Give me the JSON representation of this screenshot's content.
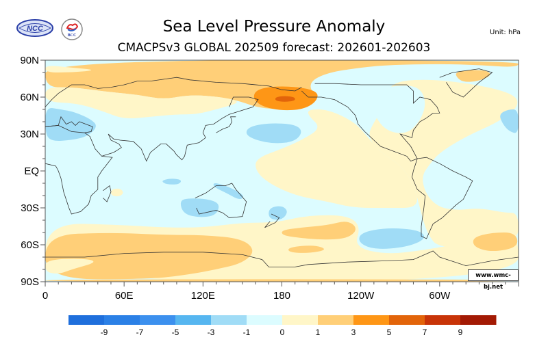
{
  "header": {
    "title": "Sea Level Pressure Anomaly",
    "subtitle": "CMACPSv3 GLOBAL 202509 forecast: 202601-202603",
    "unit": "Unit:  hPa",
    "logos": [
      {
        "name": "ncc-logo",
        "text": "NCC"
      },
      {
        "name": "bcc-logo",
        "text": "BCC"
      }
    ]
  },
  "credit": "www.wmc-bj.net",
  "chart_data": {
    "type": "heatmap",
    "title": "Sea Level Pressure Anomaly",
    "subtitle": "CMACPSv3 GLOBAL 202509 forecast: 202601-202603",
    "unit": "hPa",
    "x_range": [
      0,
      360
    ],
    "y_range": [
      -90,
      90
    ],
    "xticks": [
      {
        "value": 0,
        "label": "0"
      },
      {
        "value": 60,
        "label": "60E"
      },
      {
        "value": 120,
        "label": "120E"
      },
      {
        "value": 180,
        "label": "180"
      },
      {
        "value": 240,
        "label": "120W"
      },
      {
        "value": 300,
        "label": "60W"
      }
    ],
    "yticks": [
      {
        "value": 90,
        "label": "90N"
      },
      {
        "value": 60,
        "label": "60N"
      },
      {
        "value": 30,
        "label": "30N"
      },
      {
        "value": 0,
        "label": "EQ"
      },
      {
        "value": -30,
        "label": "30S"
      },
      {
        "value": -60,
        "label": "60S"
      },
      {
        "value": -90,
        "label": "90S"
      }
    ],
    "colorbar": {
      "levels": [
        -9,
        -7,
        -5,
        -3,
        -1,
        0,
        1,
        3,
        5,
        7,
        9
      ],
      "labels": [
        "-9",
        "-7",
        "-5",
        "-3",
        "-1",
        "0",
        "1",
        "3",
        "5",
        "7",
        "9"
      ],
      "colors": [
        "#1f6fdc",
        "#2b80e6",
        "#3c90ee",
        "#56b6f0",
        "#a0dcf6",
        "#dcfcff",
        "#fff6c8",
        "#ffcf78",
        "#fe9616",
        "#e2640a",
        "#c83408",
        "#a31a04"
      ]
    },
    "background_value_class": 6,
    "regions": [
      {
        "name": "arctic-eurasia-positive",
        "class": 7,
        "points": [
          [
            0,
            90
          ],
          [
            360,
            90
          ],
          [
            360,
            84
          ],
          [
            330,
            86
          ],
          [
            300,
            87
          ],
          [
            260,
            86
          ],
          [
            240,
            84
          ],
          [
            215,
            80
          ],
          [
            200,
            72
          ],
          [
            205,
            60
          ],
          [
            195,
            52
          ],
          [
            175,
            50
          ],
          [
            160,
            52
          ],
          [
            150,
            56
          ],
          [
            135,
            60
          ],
          [
            110,
            62
          ],
          [
            90,
            58
          ],
          [
            70,
            62
          ],
          [
            50,
            64
          ],
          [
            35,
            66
          ],
          [
            20,
            68
          ],
          [
            0,
            68
          ]
        ]
      },
      {
        "name": "arctic-eurasia-light-band",
        "class": 6,
        "points": [
          [
            0,
            86
          ],
          [
            20,
            84
          ],
          [
            40,
            82
          ],
          [
            20,
            80
          ],
          [
            0,
            80
          ]
        ]
      },
      {
        "name": "eurasia-neutral-band",
        "class": 6,
        "points": [
          [
            0,
            68
          ],
          [
            20,
            68
          ],
          [
            35,
            66
          ],
          [
            50,
            64
          ],
          [
            70,
            62
          ],
          [
            90,
            58
          ],
          [
            110,
            62
          ],
          [
            135,
            60
          ],
          [
            150,
            56
          ],
          [
            130,
            50
          ],
          [
            115,
            46
          ],
          [
            100,
            46
          ],
          [
            80,
            44
          ],
          [
            60,
            42
          ],
          [
            45,
            48
          ],
          [
            25,
            55
          ],
          [
            0,
            56
          ]
        ]
      },
      {
        "name": "aleutian-high",
        "class": 8,
        "points": [
          [
            160,
            66
          ],
          [
            175,
            69
          ],
          [
            195,
            68
          ],
          [
            208,
            64
          ],
          [
            206,
            56
          ],
          [
            196,
            50
          ],
          [
            180,
            49
          ],
          [
            166,
            52
          ],
          [
            158,
            58
          ]
        ]
      },
      {
        "name": "aleutian-high-core",
        "class": 9,
        "points": [
          [
            175,
            60
          ],
          [
            182,
            61
          ],
          [
            190,
            60
          ],
          [
            190,
            57
          ],
          [
            182,
            56
          ],
          [
            175,
            57
          ]
        ]
      },
      {
        "name": "greenland-positive",
        "class": 7,
        "points": [
          [
            312,
            80
          ],
          [
            320,
            82
          ],
          [
            335,
            82
          ],
          [
            340,
            78
          ],
          [
            330,
            73
          ],
          [
            318,
            72
          ],
          [
            313,
            76
          ]
        ]
      },
      {
        "name": "atlantic-small-positive",
        "class": 7,
        "points": [
          [
            296,
            40
          ],
          [
            302,
            42
          ],
          [
            306,
            40
          ],
          [
            302,
            37
          ],
          [
            297,
            37
          ]
        ]
      },
      {
        "name": "north-atlantic-neutral",
        "class": 6,
        "points": [
          [
            262,
            72
          ],
          [
            290,
            75
          ],
          [
            330,
            70
          ],
          [
            358,
            62
          ],
          [
            360,
            52
          ],
          [
            345,
            40
          ],
          [
            320,
            28
          ],
          [
            300,
            15
          ],
          [
            292,
            5
          ],
          [
            286,
            -5
          ],
          [
            290,
            -20
          ],
          [
            300,
            -30
          ],
          [
            315,
            -32
          ],
          [
            330,
            -30
          ],
          [
            350,
            -34
          ],
          [
            360,
            -34
          ],
          [
            360,
            -60
          ],
          [
            300,
            -64
          ],
          [
            290,
            -50
          ],
          [
            285,
            -30
          ],
          [
            280,
            -10
          ],
          [
            270,
            5
          ],
          [
            255,
            15
          ],
          [
            245,
            28
          ],
          [
            250,
            40
          ],
          [
            260,
            55
          ]
        ]
      },
      {
        "name": "north-america-negative",
        "class": 5,
        "points": [
          [
            248,
            65
          ],
          [
            270,
            70
          ],
          [
            285,
            68
          ],
          [
            290,
            55
          ],
          [
            285,
            40
          ],
          [
            275,
            30
          ],
          [
            260,
            32
          ],
          [
            250,
            45
          ]
        ]
      },
      {
        "name": "north-pacific-neutral",
        "class": 6,
        "points": [
          [
            200,
            50
          ],
          [
            215,
            50
          ],
          [
            235,
            40
          ],
          [
            245,
            28
          ],
          [
            255,
            15
          ],
          [
            270,
            5
          ],
          [
            280,
            -10
          ],
          [
            285,
            -30
          ],
          [
            260,
            -30
          ],
          [
            235,
            -30
          ],
          [
            215,
            -25
          ],
          [
            190,
            -20
          ],
          [
            170,
            -10
          ],
          [
            160,
            0
          ],
          [
            160,
            10
          ],
          [
            180,
            18
          ],
          [
            195,
            25
          ],
          [
            210,
            35
          ],
          [
            200,
            45
          ]
        ]
      },
      {
        "name": "west-europe-negative",
        "class": 4,
        "points": [
          [
            0,
            52
          ],
          [
            12,
            50
          ],
          [
            22,
            48
          ],
          [
            35,
            42
          ],
          [
            40,
            36
          ],
          [
            32,
            28
          ],
          [
            20,
            25
          ],
          [
            5,
            24
          ],
          [
            0,
            30
          ]
        ]
      },
      {
        "name": "east-atlantic-negative",
        "class": 4,
        "points": [
          [
            345,
            46
          ],
          [
            352,
            50
          ],
          [
            360,
            50
          ],
          [
            360,
            30
          ],
          [
            353,
            32
          ],
          [
            348,
            38
          ]
        ]
      },
      {
        "name": "central-pacific-negative",
        "class": 4,
        "points": [
          [
            155,
            36
          ],
          [
            170,
            39
          ],
          [
            190,
            38
          ],
          [
            196,
            32
          ],
          [
            190,
            24
          ],
          [
            175,
            22
          ],
          [
            160,
            25
          ],
          [
            152,
            30
          ]
        ]
      },
      {
        "name": "indian-ocean-small-negative",
        "class": 4,
        "points": [
          [
            88,
            -8
          ],
          [
            95,
            -6
          ],
          [
            104,
            -7
          ],
          [
            102,
            -11
          ],
          [
            92,
            -11
          ]
        ]
      },
      {
        "name": "australia-negative",
        "class": 4,
        "points": [
          [
            102,
            -24
          ],
          [
            110,
            -22
          ],
          [
            125,
            -23
          ],
          [
            133,
            -27
          ],
          [
            130,
            -36
          ],
          [
            118,
            -38
          ],
          [
            105,
            -35
          ]
        ]
      },
      {
        "name": "east-australia-negative",
        "class": 4,
        "points": [
          [
            128,
            -9
          ],
          [
            140,
            -13
          ],
          [
            152,
            -20
          ],
          [
            148,
            -24
          ],
          [
            138,
            -18
          ],
          [
            128,
            -13
          ]
        ]
      },
      {
        "name": "nz-negative",
        "class": 4,
        "points": [
          [
            170,
            -30
          ],
          [
            180,
            -28
          ],
          [
            185,
            -33
          ],
          [
            180,
            -40
          ],
          [
            170,
            -39
          ]
        ]
      },
      {
        "name": "drake-negative",
        "class": 4,
        "points": [
          [
            240,
            -50
          ],
          [
            260,
            -46
          ],
          [
            285,
            -48
          ],
          [
            290,
            -55
          ],
          [
            275,
            -62
          ],
          [
            250,
            -64
          ],
          [
            238,
            -58
          ]
        ]
      },
      {
        "name": "madagascar-positive",
        "class": 6,
        "points": [
          [
            50,
            -15
          ],
          [
            57,
            -14
          ],
          [
            60,
            -18
          ],
          [
            56,
            -21
          ],
          [
            50,
            -20
          ]
        ]
      },
      {
        "name": "southern-ocean-neutral",
        "class": 6,
        "points": [
          [
            0,
            -42
          ],
          [
            60,
            -44
          ],
          [
            90,
            -46
          ],
          [
            120,
            -46
          ],
          [
            150,
            -42
          ],
          [
            175,
            -42
          ],
          [
            200,
            -36
          ],
          [
            230,
            -36
          ],
          [
            240,
            -45
          ],
          [
            235,
            -62
          ],
          [
            260,
            -68
          ],
          [
            290,
            -64
          ],
          [
            310,
            -60
          ],
          [
            340,
            -54
          ],
          [
            360,
            -50
          ],
          [
            360,
            -90
          ],
          [
            0,
            -90
          ]
        ]
      },
      {
        "name": "southern-ocean-positive-west",
        "class": 7,
        "points": [
          [
            0,
            -52
          ],
          [
            50,
            -50
          ],
          [
            90,
            -52
          ],
          [
            120,
            -52
          ],
          [
            150,
            -55
          ],
          [
            160,
            -65
          ],
          [
            150,
            -75
          ],
          [
            130,
            -80
          ],
          [
            110,
            -84
          ],
          [
            80,
            -88
          ],
          [
            0,
            -88
          ]
        ]
      },
      {
        "name": "south-pacific-positive",
        "class": 7,
        "points": [
          [
            180,
            -48
          ],
          [
            195,
            -46
          ],
          [
            215,
            -44
          ],
          [
            230,
            -40
          ],
          [
            238,
            -47
          ],
          [
            230,
            -55
          ],
          [
            210,
            -56
          ],
          [
            190,
            -54
          ],
          [
            180,
            -52
          ]
        ]
      },
      {
        "name": "south-pacific-small-positive",
        "class": 7,
        "points": [
          [
            185,
            -62
          ],
          [
            205,
            -60
          ],
          [
            215,
            -64
          ],
          [
            200,
            -67
          ],
          [
            185,
            -66
          ]
        ]
      },
      {
        "name": "south-atlantic-positive",
        "class": 7,
        "points": [
          [
            325,
            -54
          ],
          [
            340,
            -50
          ],
          [
            358,
            -50
          ],
          [
            360,
            -62
          ],
          [
            340,
            -66
          ],
          [
            326,
            -62
          ]
        ]
      },
      {
        "name": "antarctic-light-patch",
        "class": 6,
        "points": [
          [
            0,
            -72
          ],
          [
            30,
            -71
          ],
          [
            40,
            -74
          ],
          [
            20,
            -80
          ],
          [
            10,
            -84
          ],
          [
            0,
            -82
          ]
        ]
      },
      {
        "name": "south-pole-band",
        "class": 7,
        "points": [
          [
            0,
            -88
          ],
          [
            360,
            -88
          ],
          [
            360,
            -90
          ],
          [
            0,
            -90
          ]
        ]
      }
    ]
  }
}
